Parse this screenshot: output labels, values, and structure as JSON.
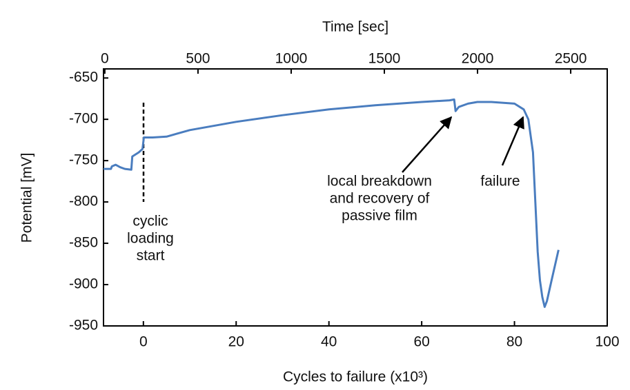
{
  "chart_data": {
    "type": "line",
    "xlabel": "Cycles to failure (x10³)",
    "x2label": "Time [sec]",
    "ylabel": "Potential [mV]",
    "x": [
      -8.6,
      -7,
      -6.8,
      -6,
      -5,
      -4,
      -2.6,
      -2.4,
      -1,
      -0.2,
      0.1,
      2,
      5,
      10,
      15,
      20,
      30,
      40,
      50,
      60,
      66,
      67,
      67.3,
      68,
      70,
      72,
      75,
      80,
      82,
      83,
      84,
      84.5,
      85,
      85.5,
      86,
      86.5,
      87,
      88,
      89.5
    ],
    "values": [
      -760,
      -760,
      -757,
      -755,
      -758,
      -760,
      -761,
      -745,
      -740,
      -736,
      -722,
      -722,
      -721,
      -713,
      -708,
      -703,
      -695,
      -688,
      -683,
      -679,
      -677,
      -676,
      -690,
      -685,
      -681,
      -679,
      -679,
      -681,
      -688,
      -700,
      -740,
      -800,
      -860,
      -895,
      -915,
      -927,
      -920,
      -895,
      -858
    ],
    "color": "#4a7dbf",
    "xlim": [
      -8.6,
      100
    ],
    "xticks": [
      0,
      20,
      40,
      60,
      80,
      100
    ],
    "x2lim": [
      -7,
      2696
    ],
    "x2ticks": [
      0,
      500,
      1000,
      1500,
      2000,
      2500
    ],
    "ylim": [
      -950,
      -639
    ],
    "yticks": [
      -650,
      -700,
      -750,
      -800,
      -850,
      -900,
      -950
    ],
    "annotations": {
      "start": [
        "cyclic",
        "loading",
        "start"
      ],
      "breakdown": [
        "local breakdown",
        "and recovery of",
        "passive film"
      ],
      "failure": "failure"
    }
  }
}
